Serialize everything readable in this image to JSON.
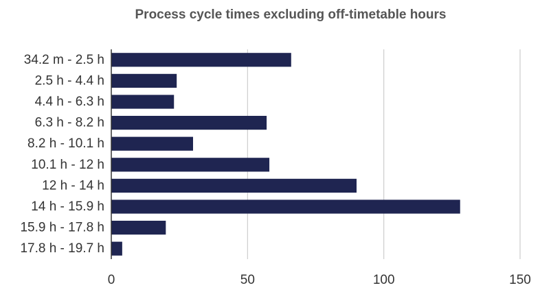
{
  "chart_data": {
    "type": "bar",
    "orientation": "horizontal",
    "title": "Process cycle times excluding off-timetable hours",
    "xlabel": "",
    "ylabel": "",
    "categories": [
      "34.2 m - 2.5 h",
      "2.5 h - 4.4 h",
      "4.4 h - 6.3 h",
      "6.3 h - 8.2 h",
      "8.2 h - 10.1 h",
      "10.1 h - 12 h",
      "12 h - 14 h",
      "14 h - 15.9 h",
      "15.9 h - 17.8 h",
      "17.8 h - 19.7 h"
    ],
    "values": [
      66,
      24,
      23,
      57,
      30,
      58,
      90,
      128,
      20,
      4
    ],
    "xlim": [
      0,
      150
    ],
    "xticks": [
      0,
      50,
      100,
      150
    ],
    "grid": true,
    "bar_color": "#1f2551",
    "grid_color": "#cccccc"
  }
}
